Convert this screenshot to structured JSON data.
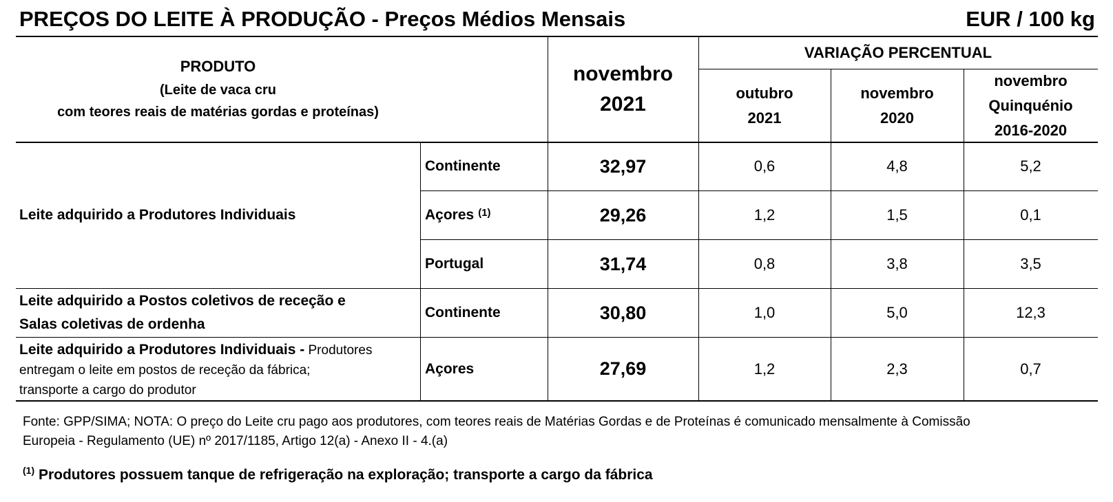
{
  "header": {
    "title": "PREÇOS DO LEITE À PRODUÇÃO - Preços  Médios Mensais",
    "unit": "EUR / 100 kg"
  },
  "table": {
    "head": {
      "product": "PRODUTO",
      "product_detail": "(Leite de vaca cru\ncom teores reais de matérias gordas e proteínas)",
      "price_period": "novembro\n2021",
      "variation": "VARIAÇÃO PERCENTUAL",
      "variation_columns": [
        "outubro\n2021",
        "novembro\n2020",
        "novembro\nQuinquénio\n2016-2020"
      ]
    },
    "groups": [
      {
        "label": "Leite adquirido a Produtores Individuais"
      },
      {
        "label": "Leite adquirido a Postos coletivos de receção e\nSalas coletivas de ordenha"
      },
      {
        "label": "Leite adquirido a Produtores Individuais -",
        "label_rest": "Produtores\nentregam o leite em postos de receção da fábrica;\ntransporte a cargo do produtor"
      }
    ],
    "rows": [
      {
        "region": "Continente",
        "price": "32,97",
        "variation": [
          "0,6",
          "4,8",
          "5,2"
        ]
      },
      {
        "region": "Açores",
        "note": "(1)",
        "price": "29,26",
        "variation": [
          "1,2",
          "1,5",
          "0,1"
        ]
      },
      {
        "region": "Portugal",
        "price": "31,74",
        "variation": [
          "0,8",
          "3,8",
          "3,5"
        ]
      },
      {
        "region": "Continente",
        "price": "30,80",
        "variation": [
          "1,0",
          "5,0",
          "12,3"
        ]
      },
      {
        "region": "Açores",
        "price": "27,69",
        "variation": [
          "1,2",
          "2,3",
          "0,7"
        ]
      }
    ]
  },
  "footer": {
    "source": "Fonte: GPP/SIMA; NOTA: O preço do Leite cru pago aos produtores, com teores reais de Matérias Gordas e de Proteínas é comunicado mensalmente à  Comissão\nEuropeia - Regulamento (UE) nº 2017/1185, Artigo 12(a) - Anexo II - 4.(a)",
    "note_marker": "(1)",
    "note_text": "Produtores possuem tanque de refrigeração na exploração; transporte a cargo da fábrica"
  }
}
